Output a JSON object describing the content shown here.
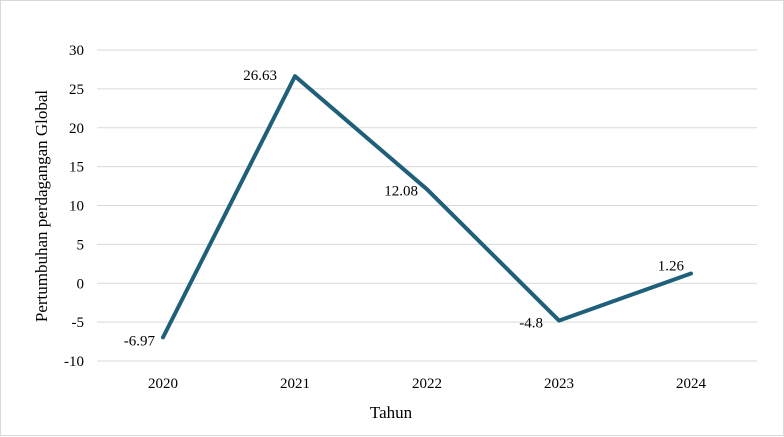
{
  "chart_data": {
    "type": "line",
    "title": "",
    "xlabel": "Tahun",
    "ylabel": "Pertumbuhan perdagangan Global",
    "categories": [
      "2020",
      "2021",
      "2022",
      "2023",
      "2024"
    ],
    "series": [
      {
        "values": [
          -6.97,
          26.63,
          12.08,
          -4.8,
          1.26
        ],
        "color": "#1f5f7a"
      }
    ],
    "data_labels": [
      "-6.97",
      "26.63",
      "12.08",
      "-4.8",
      "1.26"
    ],
    "ylim": [
      -10,
      30
    ],
    "yticks": [
      -10,
      -5,
      0,
      5,
      10,
      15,
      20,
      25,
      30
    ],
    "grid": true,
    "legend": "none"
  }
}
